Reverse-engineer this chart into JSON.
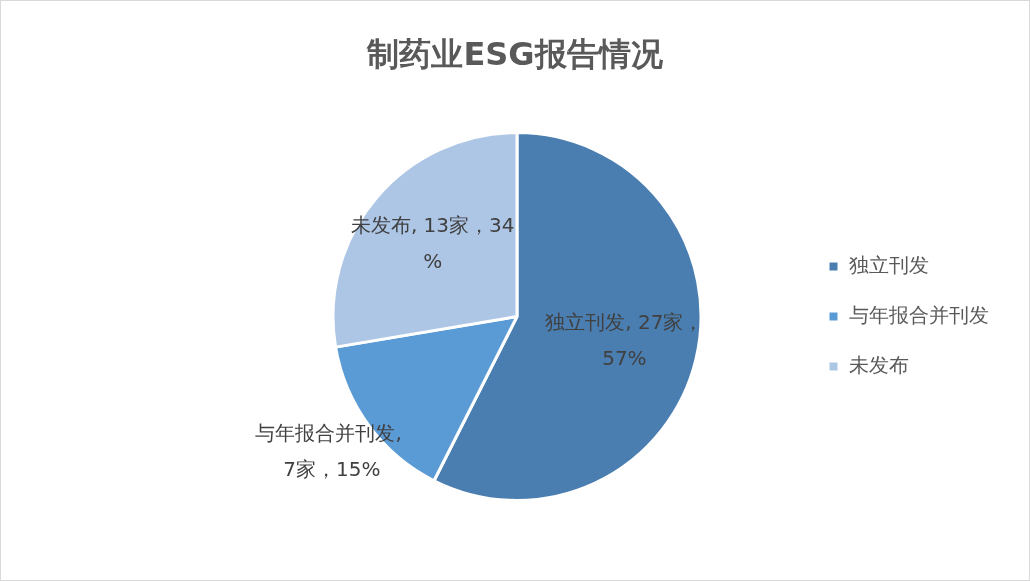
{
  "chart_data": {
    "type": "pie",
    "title": "制药业ESG报告情况",
    "categories": [
      "独立刊发",
      "与年报合并刊发",
      "未发布"
    ],
    "values": [
      27,
      7,
      13
    ],
    "colors": [
      "#4a7eb0",
      "#5b9bd5",
      "#adc6e5"
    ],
    "value_labels": [
      "独立刊发, 27家，57%",
      "与年报合并刊发, 7家，15%",
      "未发布, 13家，34%"
    ],
    "legend": "right"
  }
}
